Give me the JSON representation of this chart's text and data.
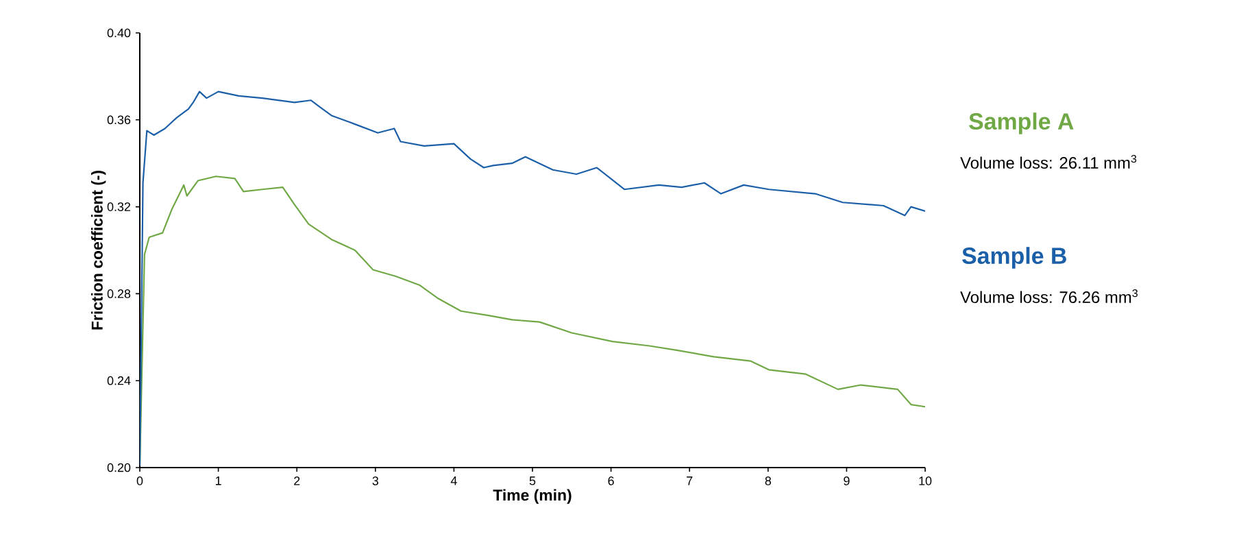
{
  "chart_data": {
    "type": "line",
    "xlabel": "Time (min)",
    "ylabel": "Friction coefficient (-)",
    "xlim": [
      0,
      10
    ],
    "ylim": [
      0.2,
      0.4
    ],
    "xticks": [
      0,
      1,
      2,
      3,
      4,
      5,
      6,
      7,
      8,
      9,
      10
    ],
    "yticks": [
      {
        "value": 0.2,
        "label": "0.20"
      },
      {
        "value": 0.24,
        "label": "0.24"
      },
      {
        "value": 0.28,
        "label": "0.28"
      },
      {
        "value": 0.32,
        "label": "0.32"
      },
      {
        "value": 0.36,
        "label": "0.36"
      },
      {
        "value": 0.4,
        "label": "0.40"
      }
    ],
    "series": [
      {
        "name": "Sample A",
        "color": "#70a845",
        "x": [
          0,
          0.06,
          0.12,
          0.29,
          0.41,
          0.56,
          0.6,
          0.74,
          0.97,
          1.21,
          1.32,
          1.56,
          1.82,
          1.97,
          2.15,
          2.44,
          2.74,
          2.97,
          3.26,
          3.56,
          3.79,
          4.09,
          4.44,
          4.74,
          5.09,
          5.5,
          6.02,
          6.49,
          6.84,
          7.31,
          7.78,
          8.01,
          8.48,
          8.89,
          9.18,
          9.65,
          9.82,
          10.0
        ],
        "values": [
          0.201,
          0.298,
          0.306,
          0.308,
          0.319,
          0.33,
          0.325,
          0.332,
          0.334,
          0.333,
          0.327,
          0.328,
          0.329,
          0.321,
          0.312,
          0.305,
          0.3,
          0.291,
          0.288,
          0.284,
          0.278,
          0.272,
          0.27,
          0.268,
          0.267,
          0.262,
          0.258,
          0.256,
          0.254,
          0.251,
          0.249,
          0.245,
          0.243,
          0.236,
          0.238,
          0.236,
          0.229,
          0.228
        ]
      },
      {
        "name": "Sample B",
        "color": "#1a5fa8",
        "x": [
          0,
          0.04,
          0.09,
          0.18,
          0.32,
          0.47,
          0.62,
          0.68,
          0.76,
          0.85,
          1.0,
          1.26,
          1.56,
          1.97,
          2.18,
          2.29,
          2.44,
          2.74,
          3.03,
          3.24,
          3.32,
          3.62,
          4.0,
          4.21,
          4.38,
          4.5,
          4.74,
          4.91,
          5.26,
          5.56,
          5.82,
          6.17,
          6.61,
          6.9,
          7.19,
          7.4,
          7.69,
          8.01,
          8.6,
          8.95,
          9.47,
          9.74,
          9.82,
          10.0
        ],
        "values": [
          0.201,
          0.331,
          0.355,
          0.353,
          0.356,
          0.361,
          0.365,
          0.368,
          0.373,
          0.37,
          0.373,
          0.371,
          0.37,
          0.368,
          0.369,
          0.366,
          0.362,
          0.358,
          0.354,
          0.356,
          0.35,
          0.348,
          0.349,
          0.342,
          0.338,
          0.339,
          0.34,
          0.343,
          0.337,
          0.335,
          0.338,
          0.328,
          0.33,
          0.329,
          0.331,
          0.326,
          0.33,
          0.328,
          0.326,
          0.322,
          0.3205,
          0.316,
          0.32,
          0.318
        ]
      }
    ],
    "annotations": [
      "Volume loss: 26.11 mm$^{3}$",
      "Volume loss: 76.26 mm$^{3}$"
    ]
  }
}
